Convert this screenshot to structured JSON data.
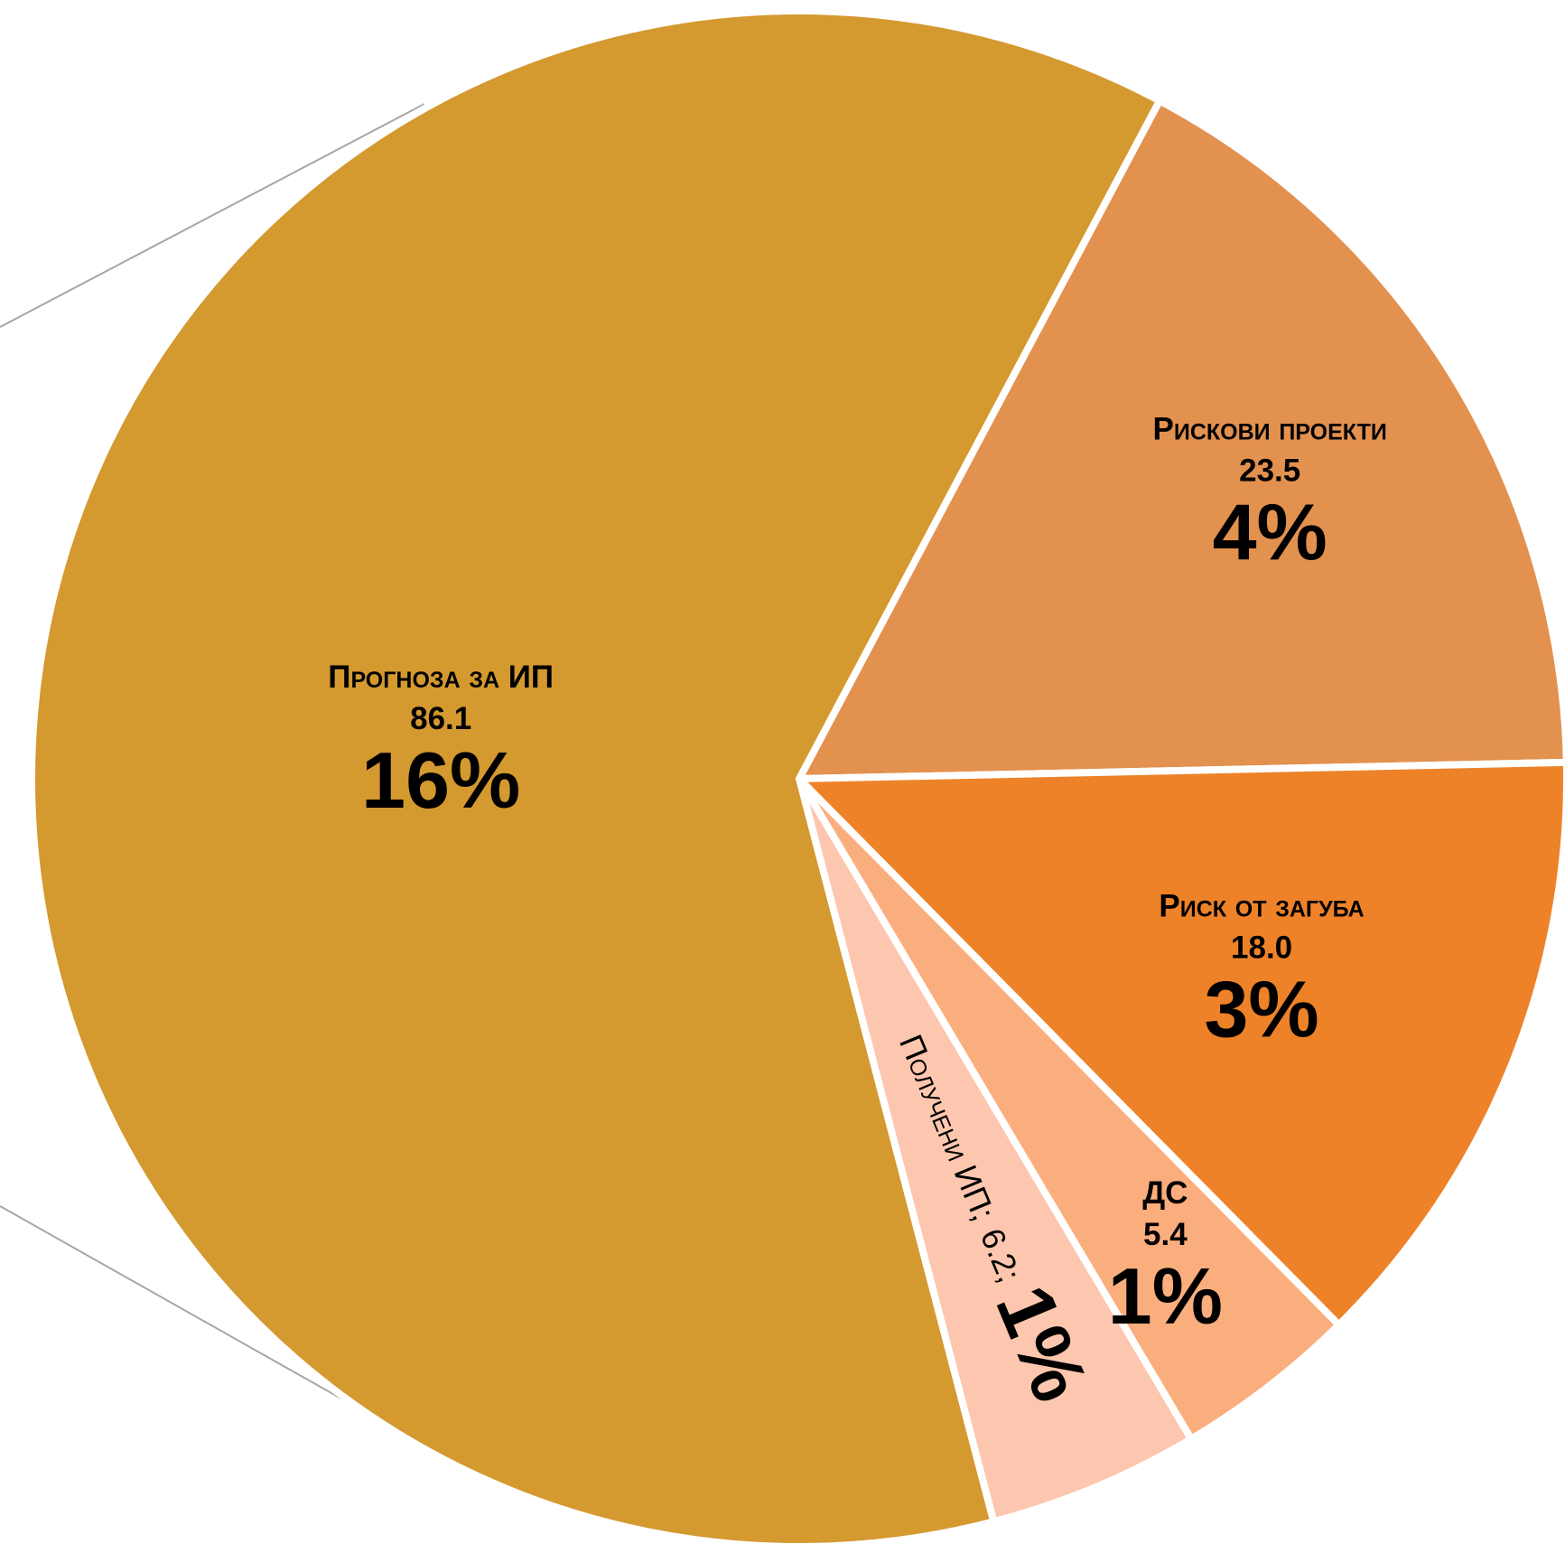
{
  "chart_data": {
    "type": "pie",
    "categories": [
      "Рискови проекти",
      "Риск от загуба",
      "ДС",
      "Получени ИП",
      "Прогноза за ИП"
    ],
    "values": [
      23.5,
      18.0,
      5.4,
      6.2,
      86.1
    ],
    "value_labels": [
      "23.5",
      "18.0",
      "5.4",
      "6.2",
      "86.1"
    ],
    "percent_labels": [
      "4%",
      "3%",
      "1%",
      "1%",
      "16%"
    ],
    "separator": ";",
    "colors": [
      "#e3914f",
      "#ee8229",
      "#fbae7d",
      "#fcc7ae",
      "#d4992f"
    ],
    "start_angle": 28
  }
}
